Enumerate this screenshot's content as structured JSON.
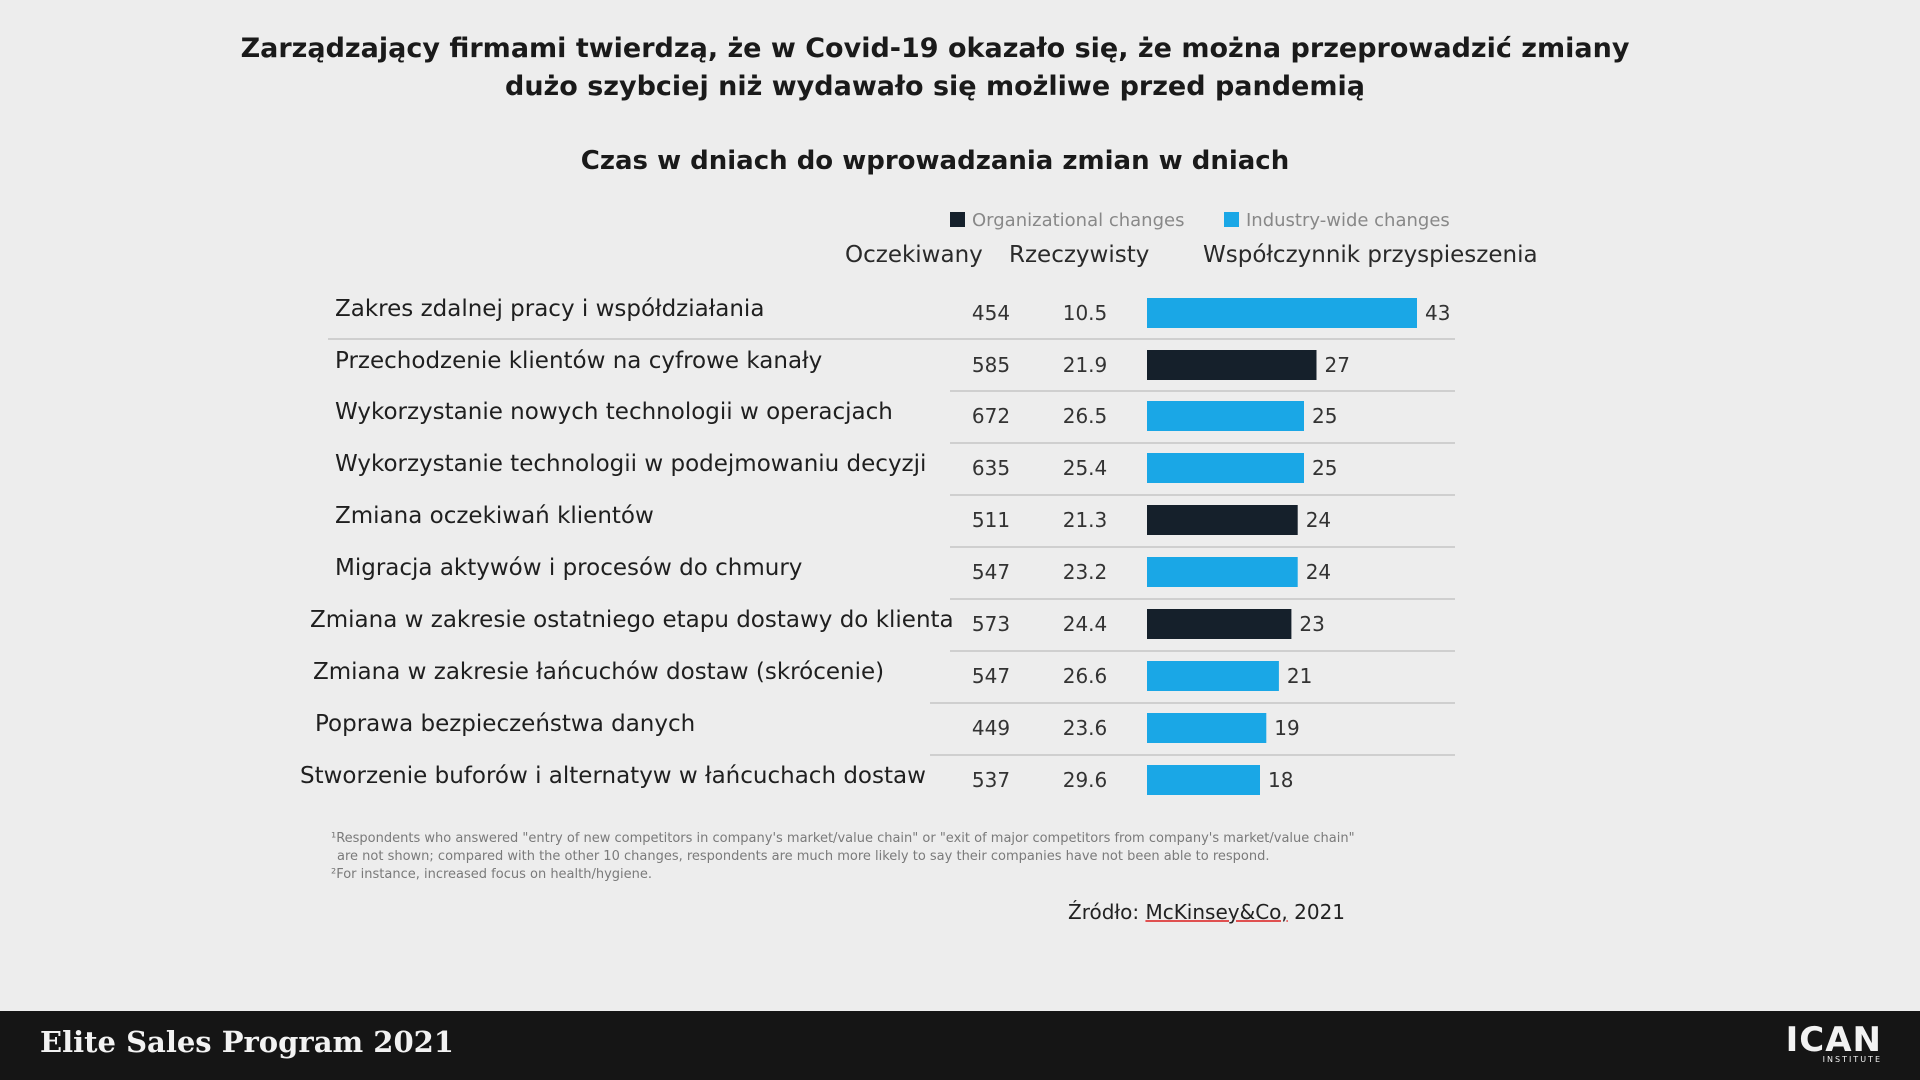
{
  "slide": {
    "title_line1": "Zarządzający firmami twierdzą, że w Covid-19 okazało się, że można przeprowadzić zmiany",
    "title_line2": "dużo szybciej niż wydawało się możliwe przed pandemią",
    "footnote_line1": "¹Respondents who answered \"entry of new competitors in company's market/value chain\" or \"exit of major competitors from company's market/value chain\"",
    "footnote_line2": "are not shown; compared with the other 10 changes, respondents are much more likely to say their companies have not been able to respond.",
    "footnote_line3": "²For instance, increased focus on health/hygiene.",
    "source_prefix": "Źródło: ",
    "source_name": "McKinsey&Co,",
    "source_year": " 2021"
  },
  "footer": {
    "program": "Elite Sales Program 2021",
    "logo_main": "ICAN",
    "logo_sub": "INSTITUTE"
  },
  "colors": {
    "organizational": "#15202b",
    "industry": "#1aa7e6"
  },
  "chart_data": {
    "type": "bar",
    "title": "Czas w dniach do wprowadzania zmian w dniach",
    "legend": [
      {
        "name": "Organizational changes",
        "color": "#15202b"
      },
      {
        "name": "Industry-wide changes",
        "color": "#1aa7e6"
      }
    ],
    "columns": {
      "expected": "Oczekiwany",
      "actual": "Rzeczywisty",
      "factor": "Współczynnik przyspieszenia"
    },
    "xlim": [
      0,
      43
    ],
    "rows": [
      {
        "label": "Zakres zdalnej pracy i współdziałania",
        "expected": "454",
        "actual": "10.5",
        "factor": 43,
        "type": "industry"
      },
      {
        "label": "Przechodzenie klientów na cyfrowe kanały",
        "expected": "585",
        "actual": "21.9",
        "factor": 27,
        "type": "organizational"
      },
      {
        "label": "Wykorzystanie nowych technologii w operacjach",
        "expected": "672",
        "actual": "26.5",
        "factor": 25,
        "type": "industry"
      },
      {
        "label": "Wykorzystanie technologii w podejmowaniu decyzji",
        "expected": "635",
        "actual": "25.4",
        "factor": 25,
        "type": "industry"
      },
      {
        "label": "Zmiana oczekiwań klientów",
        "expected": "511",
        "actual": "21.3",
        "factor": 24,
        "type": "organizational"
      },
      {
        "label": "Migracja aktywów i procesów do chmury",
        "expected": "547",
        "actual": "23.2",
        "factor": 24,
        "type": "industry"
      },
      {
        "label": "Zmiana w zakresie ostatniego etapu dostawy do klienta",
        "expected": "573",
        "actual": "24.4",
        "factor": 23,
        "type": "organizational"
      },
      {
        "label": "Zmiana w zakresie łańcuchów dostaw (skrócenie)",
        "expected": "547",
        "actual": "26.6",
        "factor": 21,
        "type": "industry"
      },
      {
        "label": "Poprawa bezpieczeństwa danych",
        "expected": "449",
        "actual": "23.6",
        "factor": 19,
        "type": "industry"
      },
      {
        "label": "Stworzenie buforów i alternatyw w łańcuchach dostaw",
        "expected": "537",
        "actual": "29.6",
        "factor": 18,
        "type": "industry"
      }
    ]
  }
}
